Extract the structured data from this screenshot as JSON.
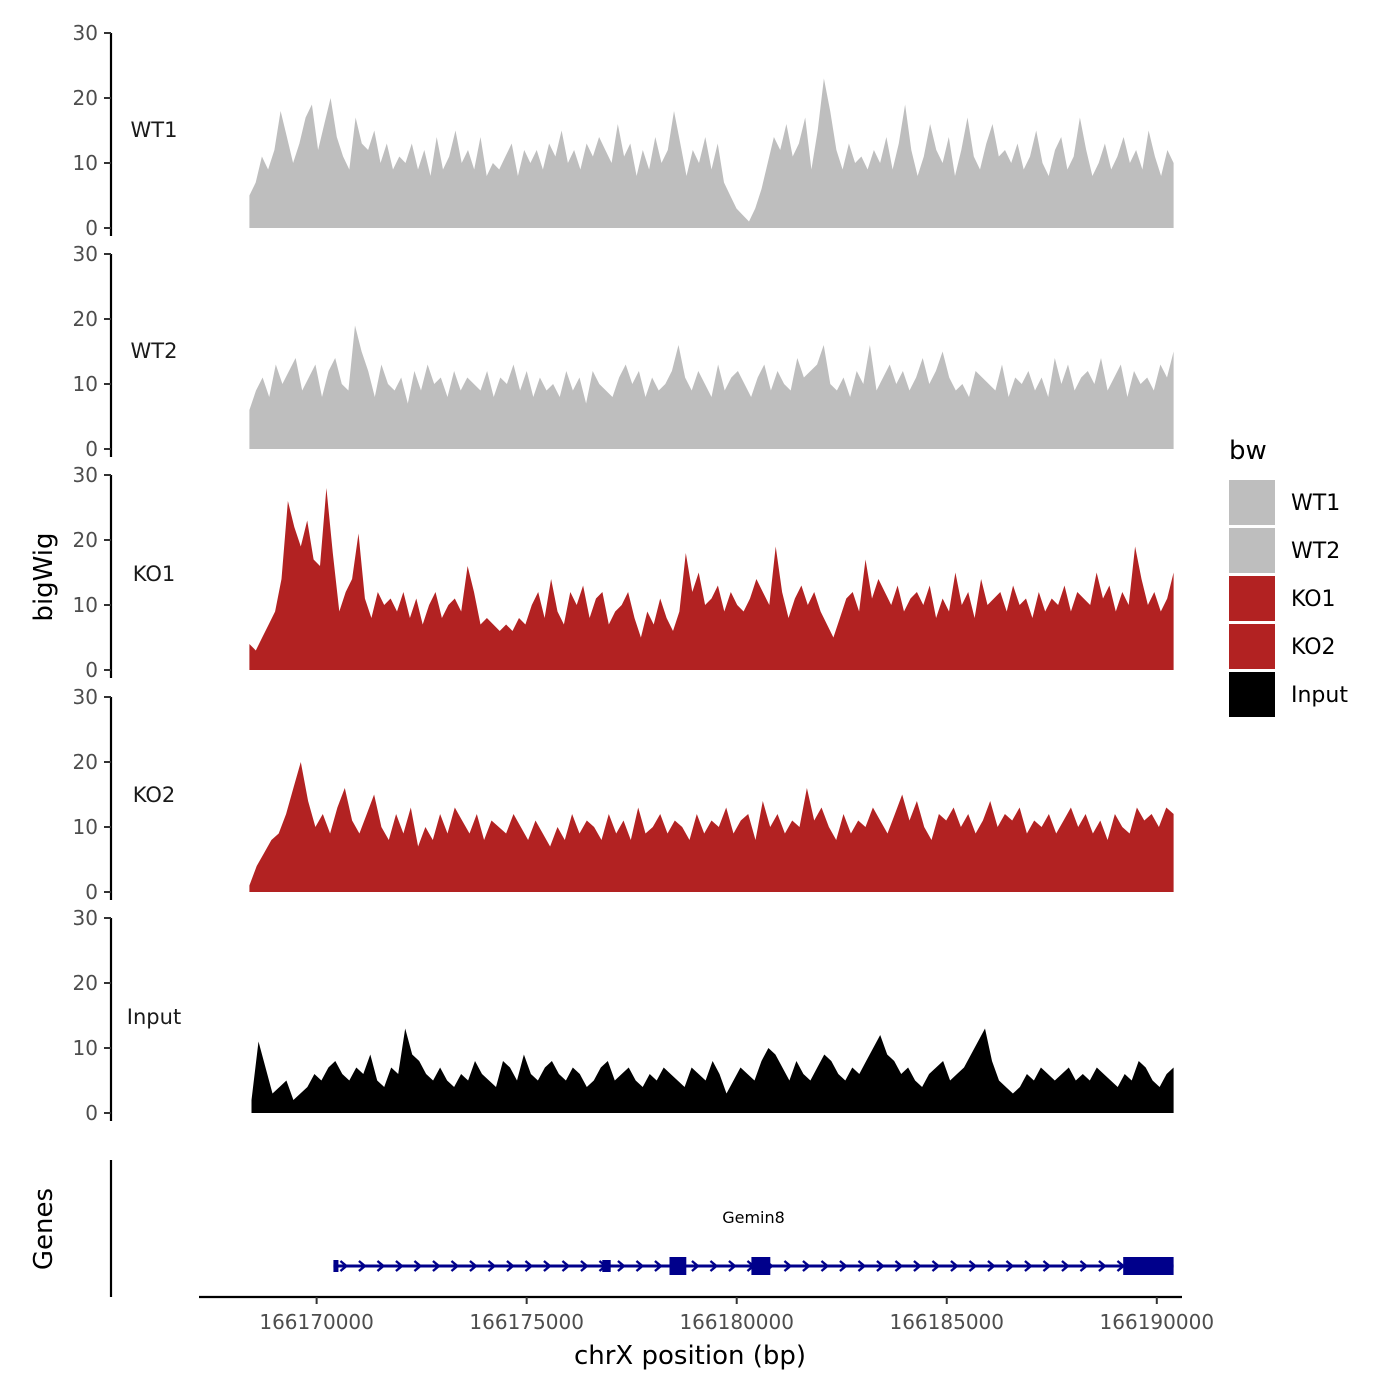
{
  "chart_data": {
    "type": "area",
    "ylabel": "bigWig",
    "xlabel": "chrX position (bp)",
    "ylim": [
      0,
      30
    ],
    "yticks": [
      "0",
      "10",
      "20",
      "30"
    ],
    "xlim": [
      166167200,
      166190600
    ],
    "xticks": [
      {
        "value": 166170000,
        "label": "166170000"
      },
      {
        "value": 166175000,
        "label": "166175000"
      },
      {
        "value": 166180000,
        "label": "166180000"
      },
      {
        "value": 166185000,
        "label": "166185000"
      },
      {
        "value": 166190000,
        "label": "166190000"
      }
    ],
    "legend": {
      "title": "bw",
      "entries": [
        {
          "name": "WT1",
          "color": "#bebebe"
        },
        {
          "name": "WT2",
          "color": "#bebebe"
        },
        {
          "name": "KO1",
          "color": "#b22222"
        },
        {
          "name": "KO2",
          "color": "#b22222"
        },
        {
          "name": "Input",
          "color": "#000000"
        }
      ]
    },
    "series": [
      {
        "name": "WT1",
        "color": "#bebebe",
        "start": 166168400,
        "end": 166190400,
        "values": [
          5,
          7,
          11,
          9,
          12,
          18,
          14,
          10,
          13,
          17,
          19,
          12,
          16,
          20,
          14,
          11,
          9,
          17,
          13,
          12,
          15,
          10,
          13,
          9,
          11,
          10,
          13,
          9,
          12,
          8,
          14,
          9,
          11,
          15,
          10,
          12,
          9,
          14,
          8,
          10,
          9,
          11,
          13,
          8,
          12,
          10,
          12,
          9,
          13,
          11,
          15,
          10,
          12,
          9,
          13,
          11,
          14,
          12,
          10,
          16,
          11,
          13,
          8,
          12,
          9,
          14,
          10,
          12,
          18,
          13,
          8,
          12,
          10,
          14,
          9,
          13,
          7,
          5,
          3,
          2,
          1,
          3,
          6,
          10,
          14,
          12,
          16,
          11,
          13,
          17,
          9,
          15,
          23,
          18,
          12,
          9,
          13,
          10,
          11,
          9,
          12,
          10,
          14,
          9,
          13,
          19,
          12,
          8,
          11,
          16,
          12,
          10,
          14,
          8,
          12,
          17,
          11,
          9,
          13,
          16,
          11,
          12,
          10,
          13,
          9,
          11,
          15,
          10,
          8,
          12,
          14,
          9,
          11,
          17,
          12,
          8,
          10,
          13,
          9,
          11,
          14,
          10,
          12,
          9,
          15,
          11,
          8,
          12,
          10
        ]
      },
      {
        "name": "WT2",
        "color": "#bebebe",
        "start": 166168400,
        "end": 166190400,
        "values": [
          6,
          9,
          11,
          8,
          13,
          10,
          12,
          14,
          9,
          11,
          13,
          8,
          12,
          14,
          10,
          9,
          19,
          15,
          12,
          8,
          13,
          10,
          9,
          11,
          7,
          12,
          9,
          13,
          10,
          11,
          8,
          12,
          9,
          11,
          10,
          9,
          12,
          8,
          11,
          10,
          13,
          9,
          12,
          8,
          11,
          9,
          10,
          8,
          12,
          9,
          11,
          7,
          12,
          10,
          9,
          8,
          11,
          13,
          10,
          12,
          8,
          11,
          9,
          10,
          12,
          16,
          11,
          9,
          12,
          10,
          8,
          13,
          9,
          11,
          12,
          10,
          8,
          11,
          13,
          9,
          12,
          10,
          9,
          14,
          11,
          12,
          13,
          16,
          10,
          9,
          11,
          8,
          12,
          10,
          16,
          9,
          11,
          13,
          10,
          12,
          9,
          11,
          14,
          10,
          12,
          15,
          11,
          9,
          10,
          8,
          12,
          11,
          10,
          9,
          13,
          8,
          11,
          10,
          12,
          9,
          11,
          8,
          14,
          10,
          13,
          9,
          11,
          12,
          10,
          14,
          9,
          11,
          13,
          8,
          12,
          10,
          11,
          9,
          13,
          11,
          15
        ]
      },
      {
        "name": "KO1",
        "color": "#b22222",
        "start": 166168400,
        "end": 166190400,
        "values": [
          4,
          3,
          5,
          7,
          9,
          14,
          26,
          22,
          19,
          23,
          17,
          16,
          28,
          18,
          9,
          12,
          14,
          21,
          11,
          8,
          12,
          10,
          11,
          9,
          12,
          8,
          11,
          7,
          10,
          12,
          8,
          10,
          11,
          9,
          16,
          12,
          7,
          8,
          7,
          6,
          7,
          6,
          8,
          7,
          10,
          12,
          8,
          14,
          9,
          7,
          12,
          10,
          13,
          8,
          11,
          12,
          7,
          9,
          10,
          12,
          8,
          5,
          9,
          7,
          11,
          8,
          6,
          9,
          18,
          12,
          15,
          10,
          11,
          13,
          9,
          12,
          10,
          9,
          11,
          14,
          12,
          10,
          19,
          12,
          8,
          11,
          13,
          10,
          12,
          9,
          7,
          5,
          8,
          11,
          12,
          9,
          17,
          11,
          14,
          12,
          10,
          13,
          9,
          11,
          12,
          10,
          13,
          8,
          11,
          9,
          15,
          10,
          12,
          8,
          14,
          10,
          11,
          12,
          9,
          13,
          10,
          11,
          8,
          12,
          9,
          11,
          10,
          13,
          9,
          12,
          11,
          10,
          15,
          11,
          13,
          9,
          12,
          10,
          19,
          14,
          10,
          12,
          9,
          11,
          15
        ]
      },
      {
        "name": "KO2",
        "color": "#b22222",
        "start": 166168400,
        "end": 166190400,
        "values": [
          1,
          4,
          6,
          8,
          9,
          12,
          16,
          20,
          14,
          10,
          12,
          9,
          13,
          16,
          11,
          9,
          12,
          15,
          10,
          8,
          12,
          9,
          13,
          7,
          10,
          8,
          12,
          9,
          13,
          11,
          9,
          12,
          8,
          11,
          10,
          9,
          12,
          10,
          8,
          11,
          9,
          7,
          10,
          8,
          12,
          9,
          11,
          10,
          8,
          12,
          9,
          11,
          8,
          13,
          9,
          10,
          12,
          9,
          11,
          10,
          8,
          12,
          9,
          11,
          10,
          13,
          9,
          11,
          12,
          8,
          14,
          10,
          12,
          9,
          11,
          10,
          16,
          11,
          13,
          10,
          8,
          12,
          9,
          11,
          10,
          13,
          11,
          9,
          12,
          15,
          11,
          14,
          10,
          8,
          12,
          11,
          13,
          10,
          12,
          9,
          11,
          14,
          10,
          12,
          11,
          13,
          9,
          11,
          10,
          12,
          9,
          11,
          13,
          10,
          12,
          9,
          11,
          8,
          12,
          10,
          9,
          13,
          11,
          12,
          10,
          13,
          12
        ]
      },
      {
        "name": "Input",
        "color": "#000000",
        "start": 166168450,
        "end": 166190400,
        "values": [
          2,
          11,
          7,
          3,
          4,
          5,
          2,
          3,
          4,
          6,
          5,
          7,
          8,
          6,
          5,
          7,
          6,
          9,
          5,
          4,
          7,
          6,
          13,
          9,
          8,
          6,
          5,
          7,
          5,
          4,
          6,
          5,
          8,
          6,
          5,
          4,
          8,
          7,
          5,
          9,
          6,
          5,
          7,
          8,
          6,
          5,
          7,
          6,
          4,
          5,
          7,
          8,
          5,
          6,
          7,
          5,
          4,
          6,
          5,
          7,
          6,
          5,
          4,
          7,
          6,
          5,
          8,
          6,
          3,
          5,
          7,
          6,
          5,
          8,
          10,
          9,
          7,
          5,
          8,
          6,
          5,
          7,
          9,
          8,
          6,
          5,
          7,
          6,
          8,
          10,
          12,
          9,
          8,
          6,
          7,
          5,
          4,
          6,
          7,
          8,
          5,
          6,
          7,
          9,
          11,
          13,
          8,
          5,
          4,
          3,
          4,
          6,
          5,
          7,
          6,
          5,
          6,
          7,
          5,
          6,
          5,
          7,
          6,
          5,
          4,
          6,
          5,
          8,
          7,
          5,
          4,
          6,
          7
        ]
      }
    ],
    "genes_label": "Genes",
    "gene": {
      "name": "Gemin8",
      "strand": "+",
      "start": 166170400,
      "end": 166190400,
      "exons": [
        {
          "start": 166170400,
          "end": 166170500
        },
        {
          "start": 166176800,
          "end": 166177000
        },
        {
          "start": 166178400,
          "end": 166178800
        },
        {
          "start": 166180350,
          "end": 166180800
        },
        {
          "start": 166189200,
          "end": 166190400
        }
      ]
    }
  }
}
